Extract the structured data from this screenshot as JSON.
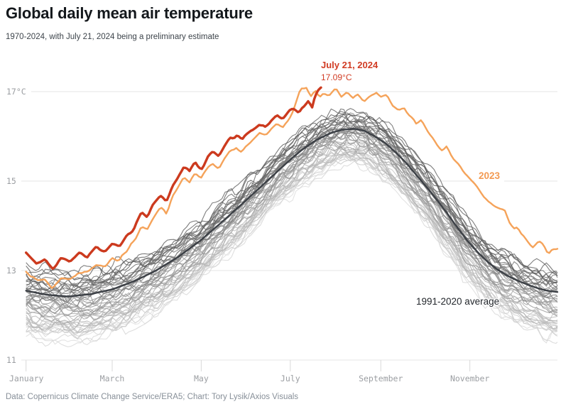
{
  "header": {
    "title": "Global daily mean air temperature",
    "subtitle": "1970-2024, with July 21, 2024 being a preliminary estimate"
  },
  "footer": {
    "source": "Data: Copernicus Climate Change Service/ERA5; Chart: Tory Lysik/Axios Visuals"
  },
  "annotations": {
    "current_date_label": "July 21, 2024",
    "current_value_label": "17.09°C",
    "year_2023_label": "2023",
    "average_label": "1991-2020 average"
  },
  "colors": {
    "line_2024": "#cc3a1e",
    "label_2024": "#d13c24",
    "line_2023": "#f5a35a",
    "label_2023": "#f39a52",
    "line_average": "#3c4046",
    "gridline": "#e4e4e4",
    "axis_tick": "#d9d9d9",
    "axis_label": "#9b9ea2",
    "gray_year_light": "#dbdbdb",
    "gray_year_dark": "#595959"
  },
  "chart_data": {
    "type": "line",
    "title": "Global daily mean air temperature",
    "xlabel": "",
    "ylabel": "°C",
    "grid": "horizontal",
    "x_axis": {
      "tick_labels": [
        "January",
        "March",
        "May",
        "July",
        "September",
        "November"
      ],
      "tick_days": [
        1,
        60,
        121,
        182,
        244,
        305
      ],
      "domain_days": [
        1,
        365
      ]
    },
    "y_axis": {
      "tick_labels": [
        "17°C",
        "15",
        "13",
        "11"
      ],
      "tick_values": [
        17,
        15,
        13,
        11
      ],
      "range": [
        11,
        17.3
      ]
    },
    "background_years": {
      "label": "individual years 1970-2022",
      "start_year": 1970,
      "end_year": 2022,
      "count": 53,
      "offset_range_vs_average": [
        -1.0,
        0.45
      ],
      "winter_envelope": [
        11.4,
        13.2
      ],
      "summer_envelope": [
        15.2,
        16.6
      ],
      "noise_amp": 0.17
    },
    "series": [
      {
        "name": "1991-2020 average",
        "role": "average",
        "anchors": [
          [
            1,
            12.55
          ],
          [
            15,
            12.46
          ],
          [
            30,
            12.42
          ],
          [
            45,
            12.47
          ],
          [
            60,
            12.58
          ],
          [
            75,
            12.76
          ],
          [
            90,
            13.0
          ],
          [
            105,
            13.3
          ],
          [
            120,
            13.66
          ],
          [
            135,
            14.08
          ],
          [
            150,
            14.52
          ],
          [
            160,
            14.82
          ],
          [
            170,
            15.12
          ],
          [
            180,
            15.42
          ],
          [
            190,
            15.7
          ],
          [
            200,
            15.92
          ],
          [
            210,
            16.08
          ],
          [
            218,
            16.15
          ],
          [
            226,
            16.17
          ],
          [
            233,
            16.12
          ],
          [
            240,
            16.0
          ],
          [
            247,
            15.85
          ],
          [
            254,
            15.65
          ],
          [
            261,
            15.42
          ],
          [
            268,
            15.15
          ],
          [
            275,
            14.88
          ],
          [
            282,
            14.6
          ],
          [
            289,
            14.3
          ],
          [
            296,
            13.98
          ],
          [
            303,
            13.68
          ],
          [
            310,
            13.42
          ],
          [
            317,
            13.2
          ],
          [
            324,
            13.02
          ],
          [
            331,
            12.88
          ],
          [
            338,
            12.77
          ],
          [
            345,
            12.68
          ],
          [
            352,
            12.6
          ],
          [
            358,
            12.55
          ],
          [
            365,
            12.52
          ]
        ]
      },
      {
        "name": "2023",
        "role": "year2023",
        "anchors": [
          [
            1,
            13.02
          ],
          [
            8,
            12.75
          ],
          [
            14,
            12.8
          ],
          [
            19,
            12.6
          ],
          [
            25,
            12.85
          ],
          [
            31,
            12.78
          ],
          [
            37,
            12.98
          ],
          [
            43,
            12.95
          ],
          [
            49,
            13.15
          ],
          [
            55,
            13.1
          ],
          [
            60,
            13.28
          ],
          [
            65,
            13.22
          ],
          [
            70,
            13.45
          ],
          [
            75,
            13.65
          ],
          [
            80,
            14.02
          ],
          [
            84,
            13.95
          ],
          [
            88,
            14.18
          ],
          [
            93,
            14.4
          ],
          [
            97,
            14.3
          ],
          [
            101,
            14.6
          ],
          [
            105,
            14.85
          ],
          [
            109,
            15.08
          ],
          [
            113,
            14.95
          ],
          [
            117,
            15.15
          ],
          [
            121,
            15.05
          ],
          [
            125,
            15.25
          ],
          [
            129,
            15.42
          ],
          [
            133,
            15.3
          ],
          [
            137,
            15.52
          ],
          [
            141,
            15.7
          ],
          [
            145,
            15.78
          ],
          [
            149,
            15.65
          ],
          [
            153,
            15.82
          ],
          [
            157,
            15.95
          ],
          [
            161,
            16.08
          ],
          [
            165,
            15.98
          ],
          [
            169,
            16.15
          ],
          [
            173,
            16.28
          ],
          [
            177,
            16.22
          ],
          [
            181,
            16.4
          ],
          [
            184,
            16.6
          ],
          [
            186,
            16.8
          ],
          [
            188,
            16.95
          ],
          [
            190,
            17.05
          ],
          [
            193,
            17.1
          ],
          [
            196,
            16.92
          ],
          [
            199,
            17.02
          ],
          [
            202,
            16.88
          ],
          [
            205,
            17.0
          ],
          [
            209,
            16.92
          ],
          [
            213,
            17.04
          ],
          [
            217,
            16.88
          ],
          [
            221,
            16.96
          ],
          [
            225,
            16.84
          ],
          [
            229,
            16.92
          ],
          [
            233,
            16.8
          ],
          [
            237,
            16.9
          ],
          [
            241,
            16.94
          ],
          [
            244,
            16.84
          ],
          [
            248,
            16.9
          ],
          [
            252,
            16.68
          ],
          [
            256,
            16.54
          ],
          [
            260,
            16.6
          ],
          [
            264,
            16.44
          ],
          [
            268,
            16.3
          ],
          [
            271,
            16.4
          ],
          [
            274,
            16.24
          ],
          [
            277,
            16.08
          ],
          [
            280,
            15.92
          ],
          [
            283,
            15.78
          ],
          [
            286,
            15.66
          ],
          [
            289,
            15.74
          ],
          [
            292,
            15.56
          ],
          [
            295,
            15.44
          ],
          [
            298,
            15.32
          ],
          [
            302,
            15.16
          ],
          [
            306,
            15.0
          ],
          [
            310,
            14.86
          ],
          [
            314,
            14.68
          ],
          [
            318,
            14.56
          ],
          [
            322,
            14.48
          ],
          [
            326,
            14.42
          ],
          [
            329,
            14.3
          ],
          [
            332,
            14.05
          ],
          [
            335,
            13.92
          ],
          [
            338,
            13.98
          ],
          [
            341,
            13.82
          ],
          [
            344,
            13.66
          ],
          [
            348,
            13.5
          ],
          [
            352,
            13.62
          ],
          [
            356,
            13.55
          ],
          [
            359,
            13.35
          ],
          [
            362,
            13.45
          ],
          [
            365,
            13.47
          ]
        ]
      },
      {
        "name": "2024",
        "role": "year2024",
        "end_day": 203,
        "end_value": 17.09,
        "anchors": [
          [
            1,
            13.4
          ],
          [
            8,
            13.15
          ],
          [
            14,
            13.22
          ],
          [
            19,
            13.05
          ],
          [
            25,
            13.28
          ],
          [
            31,
            13.2
          ],
          [
            37,
            13.38
          ],
          [
            43,
            13.3
          ],
          [
            49,
            13.52
          ],
          [
            55,
            13.45
          ],
          [
            60,
            13.62
          ],
          [
            65,
            13.55
          ],
          [
            70,
            13.78
          ],
          [
            75,
            13.95
          ],
          [
            80,
            14.3
          ],
          [
            84,
            14.2
          ],
          [
            88,
            14.45
          ],
          [
            93,
            14.65
          ],
          [
            97,
            14.55
          ],
          [
            101,
            14.85
          ],
          [
            105,
            15.1
          ],
          [
            109,
            15.35
          ],
          [
            113,
            15.2
          ],
          [
            117,
            15.4
          ],
          [
            121,
            15.28
          ],
          [
            125,
            15.5
          ],
          [
            129,
            15.68
          ],
          [
            133,
            15.55
          ],
          [
            137,
            15.78
          ],
          [
            141,
            15.95
          ],
          [
            145,
            16.02
          ],
          [
            149,
            15.9
          ],
          [
            153,
            16.08
          ],
          [
            157,
            16.2
          ],
          [
            161,
            16.3
          ],
          [
            165,
            16.18
          ],
          [
            169,
            16.35
          ],
          [
            173,
            16.48
          ],
          [
            177,
            16.4
          ],
          [
            181,
            16.55
          ],
          [
            185,
            16.65
          ],
          [
            188,
            16.52
          ],
          [
            191,
            16.68
          ],
          [
            194,
            16.82
          ],
          [
            197,
            16.65
          ],
          [
            199,
            16.9
          ],
          [
            201,
            17.02
          ],
          [
            203,
            17.09
          ]
        ]
      }
    ]
  }
}
